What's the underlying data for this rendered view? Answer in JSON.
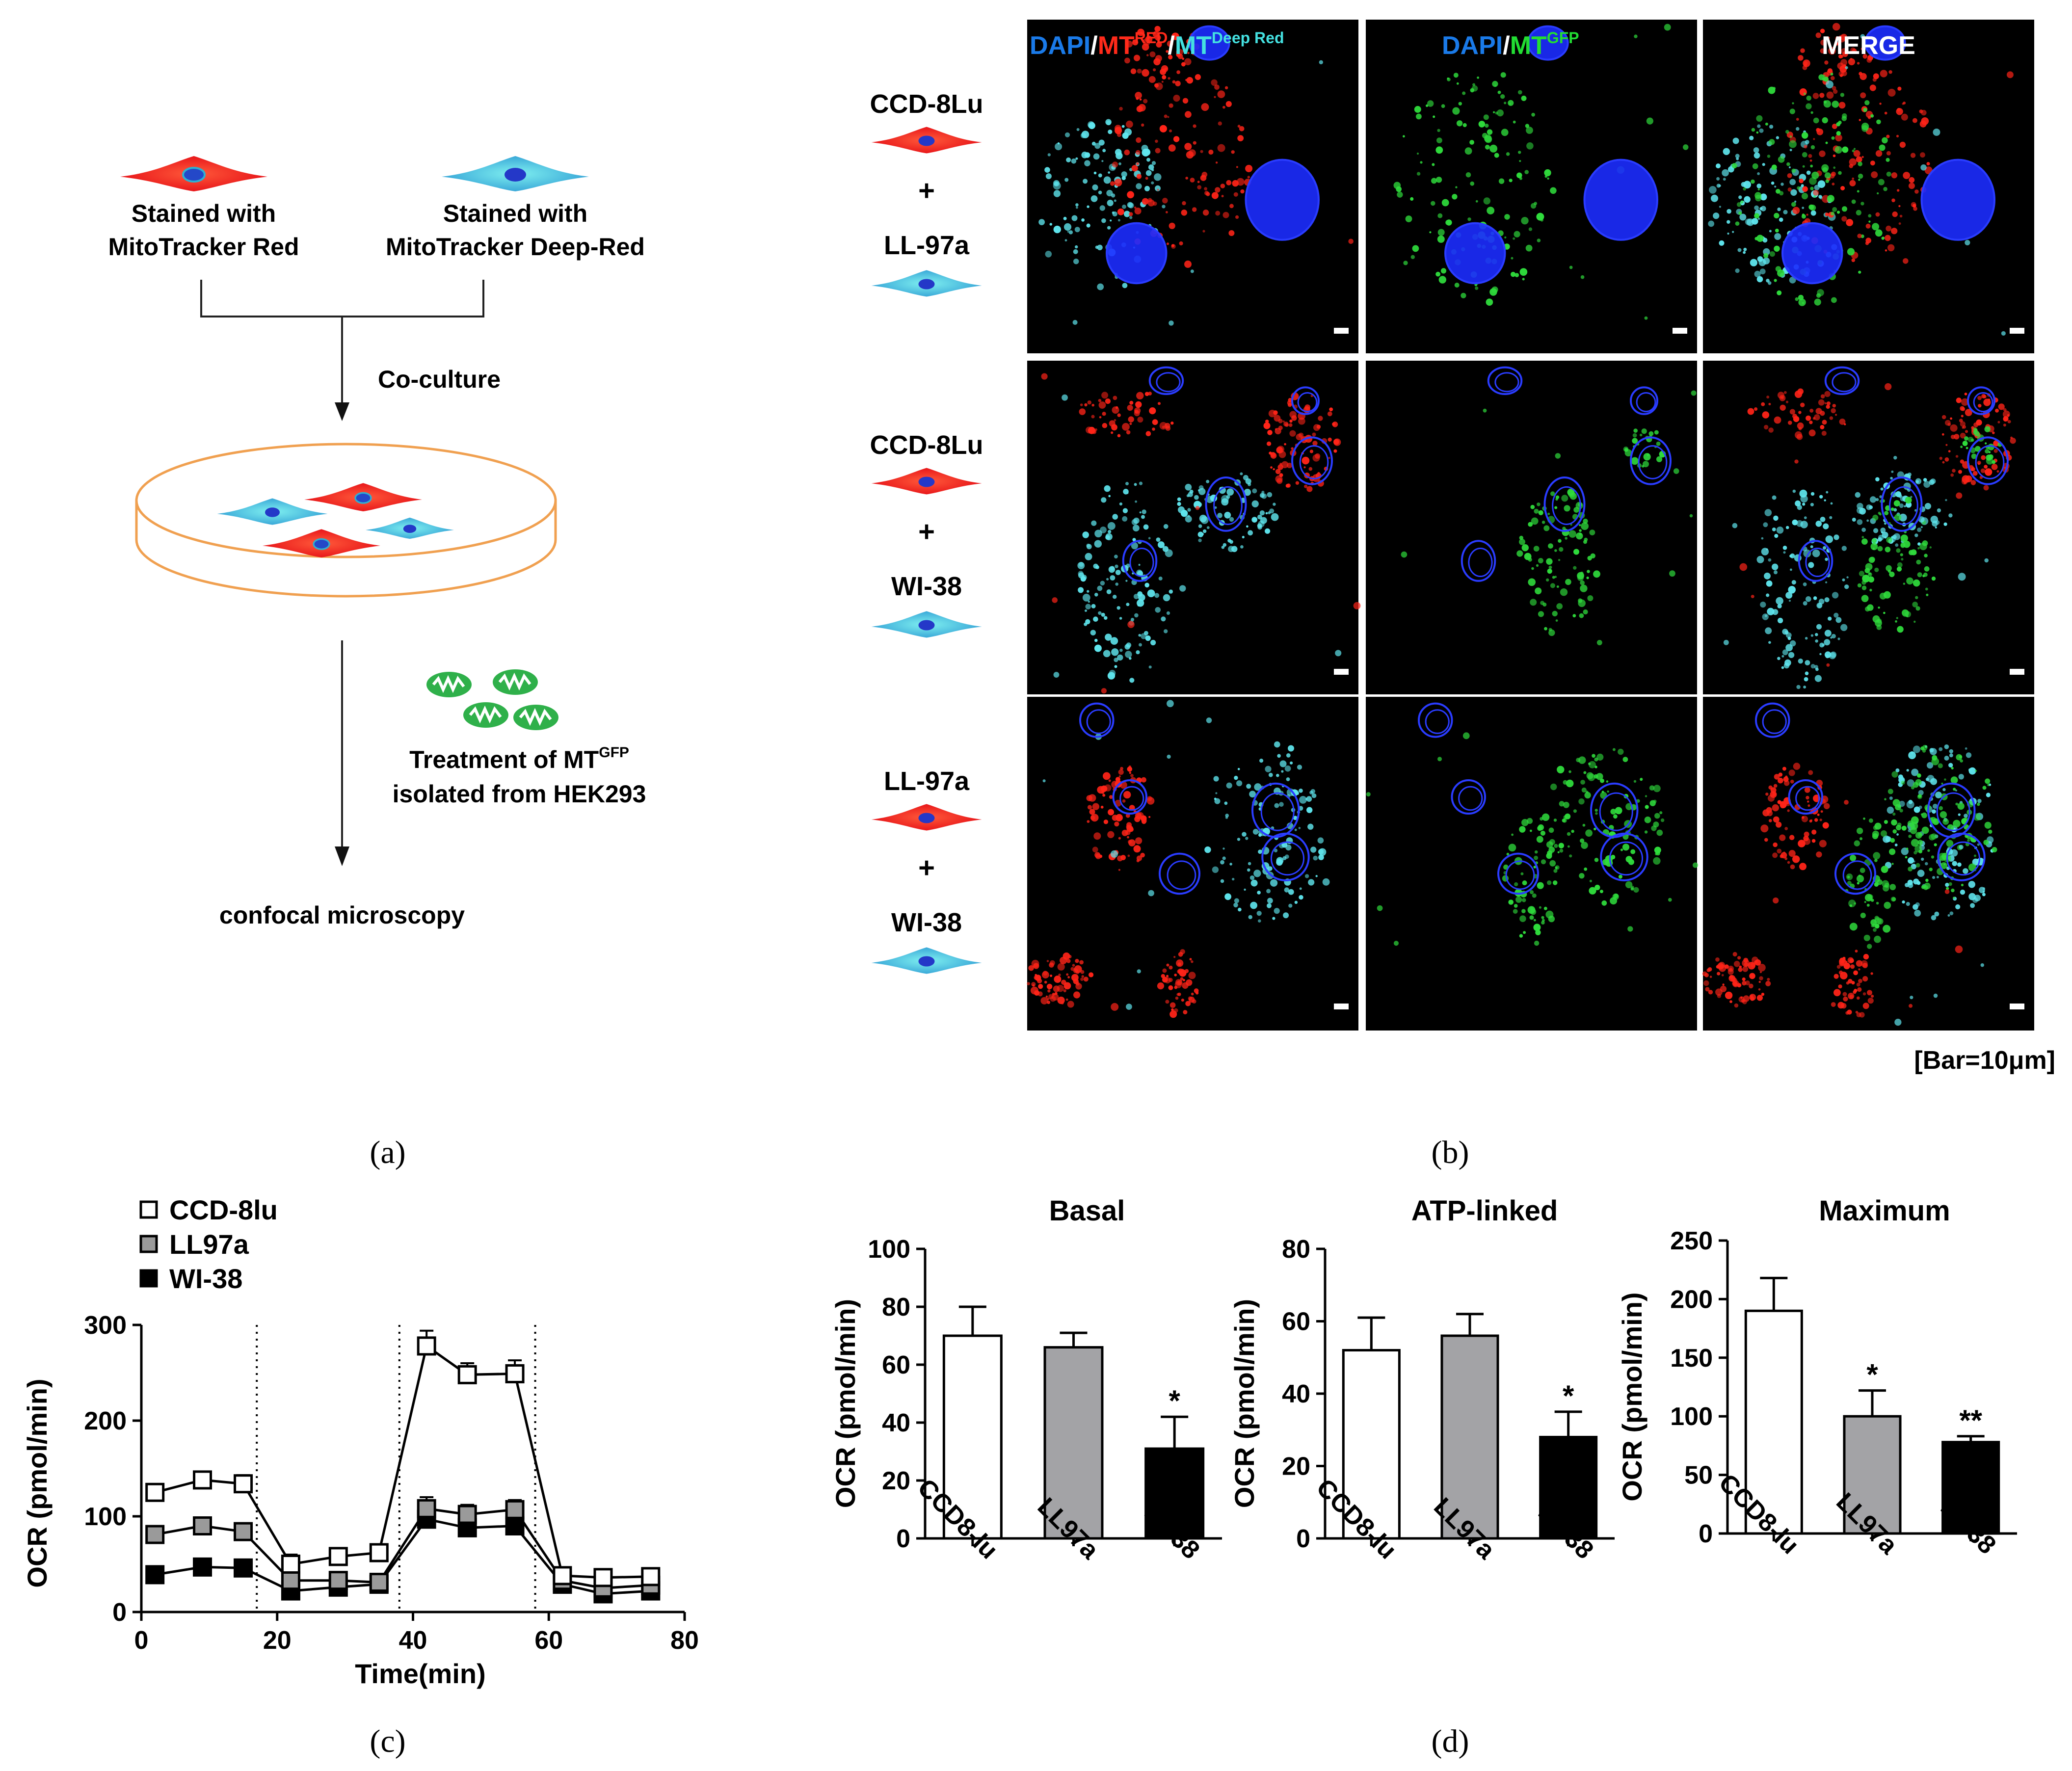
{
  "colors": {
    "red_cell": "#f22418",
    "cyan_cell": "#48d4dd",
    "nucleus": "#1a2ad8",
    "dish": "#f0a050",
    "gfp": "#2fb04a"
  },
  "panel_a": {
    "caption": "(a)",
    "cell1_label": [
      "Stained with",
      "MitoTracker Red"
    ],
    "cell2_label": [
      "Stained with",
      "MitoTracker Deep-Red"
    ],
    "coculture": "Co-culture",
    "treatment": [
      "Treatment of MT",
      "GFP",
      "isolated from HEK293"
    ],
    "final": "confocal microscopy"
  },
  "panel_b": {
    "caption": "(b)",
    "col_headers": [
      {
        "parts": [
          {
            "t": "DAPI",
            "c": "#1a7ae8"
          },
          {
            "t": "/",
            "c": "#ffffff"
          },
          {
            "t": "MT",
            "c": "#ff2a1a"
          },
          {
            "t": "RED",
            "c": "#ff2a1a",
            "sup": true
          },
          {
            "t": "/",
            "c": "#ffffff"
          },
          {
            "t": "MT",
            "c": "#44e0e0"
          },
          {
            "t": "Deep Red",
            "c": "#44e0e0",
            "sup": true
          }
        ]
      },
      {
        "parts": [
          {
            "t": "DAPI",
            "c": "#1a7ae8"
          },
          {
            "t": "/",
            "c": "#ffffff"
          },
          {
            "t": "MT",
            "c": "#22dd33"
          },
          {
            "t": "GFP",
            "c": "#22dd33",
            "sup": true
          }
        ]
      },
      {
        "parts": [
          {
            "t": "MERGE",
            "c": "#ffffff"
          }
        ]
      }
    ],
    "rows": [
      {
        "top": "CCD-8Lu",
        "plus": "+",
        "bottom": "LL-97a"
      },
      {
        "top": "CCD-8Lu",
        "plus": "+",
        "bottom": "WI-38"
      },
      {
        "top": "LL-97a",
        "plus": "+",
        "bottom": "WI-38"
      }
    ],
    "scale_note": "[Bar=10μm]"
  },
  "panel_c": {
    "caption": "(c)",
    "chart_data": {
      "type": "line",
      "xlabel": "Time(min)",
      "ylabel": "OCR (pmol/min)",
      "xlim": [
        0,
        80
      ],
      "ylim": [
        0,
        300
      ],
      "xticks": [
        0,
        20,
        40,
        60,
        80
      ],
      "yticks": [
        0,
        100,
        200,
        300
      ],
      "injections": [
        17,
        38,
        58
      ],
      "legend": "top-left",
      "series": [
        {
          "name": "CCD-8lu",
          "marker": "open",
          "x": [
            2,
            9,
            15,
            22,
            29,
            35,
            42,
            48,
            55,
            62,
            68,
            75
          ],
          "y": [
            125,
            138,
            134,
            50,
            58,
            62,
            278,
            248,
            249,
            38,
            36,
            37
          ],
          "err": [
            6,
            6,
            9,
            10,
            6,
            6,
            16,
            12,
            14,
            5,
            5,
            5
          ]
        },
        {
          "name": "LL97a",
          "marker": "gray",
          "x": [
            2,
            9,
            15,
            22,
            29,
            35,
            42,
            48,
            55,
            62,
            68,
            75
          ],
          "y": [
            81,
            90,
            84,
            33,
            33,
            31,
            108,
            102,
            107,
            33,
            25,
            28
          ],
          "err": [
            6,
            6,
            6,
            8,
            6,
            5,
            12,
            10,
            10,
            5,
            5,
            5
          ]
        },
        {
          "name": "WI-38",
          "marker": "black",
          "x": [
            2,
            9,
            15,
            22,
            29,
            35,
            42,
            48,
            55,
            62,
            68,
            75
          ],
          "y": [
            39,
            47,
            46,
            22,
            26,
            29,
            97,
            88,
            90,
            29,
            19,
            22
          ],
          "err": [
            5,
            5,
            5,
            5,
            5,
            5,
            14,
            16,
            16,
            5,
            4,
            4
          ]
        }
      ]
    }
  },
  "panel_d": {
    "caption": "(d)",
    "chart_data": [
      {
        "type": "bar",
        "title": "Basal",
        "ylabel": "OCR (pmol/min)",
        "ylim": [
          0,
          100
        ],
        "yticks": [
          0,
          20,
          40,
          60,
          80,
          100
        ],
        "categories": [
          "CCD8-lu",
          "LL97a",
          "WI-38"
        ],
        "values": [
          70,
          66,
          31
        ],
        "errors": [
          10,
          5,
          11
        ],
        "significance": [
          "",
          "",
          "*"
        ]
      },
      {
        "type": "bar",
        "title": "ATP-linked",
        "ylabel": "OCR (pmol/min)",
        "ylim": [
          0,
          80
        ],
        "yticks": [
          0,
          20,
          40,
          60,
          80
        ],
        "categories": [
          "CCD8-lu",
          "LL97a",
          "WI-38"
        ],
        "values": [
          52,
          56,
          28
        ],
        "errors": [
          9,
          6,
          7
        ],
        "significance": [
          "",
          "",
          "*"
        ]
      },
      {
        "type": "bar",
        "title": "Maximum",
        "ylabel": "OCR (pmol/min)",
        "ylim": [
          0,
          250
        ],
        "yticks": [
          0,
          50,
          100,
          150,
          200,
          250
        ],
        "categories": [
          "CCD8-lu",
          "LL97a",
          "WI-38"
        ],
        "values": [
          190,
          100,
          78
        ],
        "errors": [
          28,
          22,
          5
        ],
        "significance": [
          "",
          "*",
          "**"
        ]
      }
    ]
  }
}
